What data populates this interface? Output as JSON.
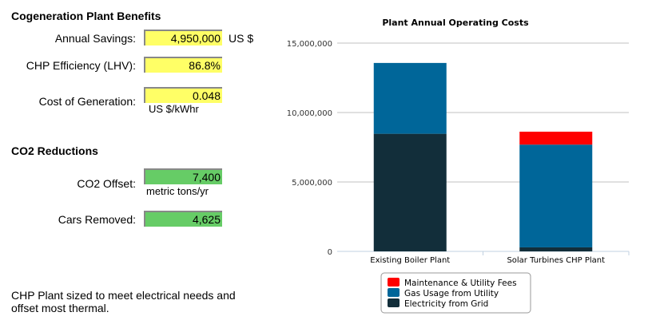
{
  "benefits": {
    "title": "Cogeneration Plant Benefits",
    "annual_savings": {
      "label": "Annual Savings:",
      "value": "4,950,000",
      "unit": "US $"
    },
    "chp_efficiency": {
      "label": "CHP Efficiency (LHV):",
      "value": "86.8%"
    },
    "cost_generation": {
      "label": "Cost of Generation:",
      "value": "0.048",
      "unit": "US $/kWhr"
    }
  },
  "co2": {
    "title": "CO2 Reductions",
    "offset": {
      "label": "CO2 Offset:",
      "value": "7,400",
      "unit": "metric tons/yr"
    },
    "cars": {
      "label": "Cars Removed:",
      "value": "4,625"
    }
  },
  "note": "CHP Plant sized to meet electrical needs and offset most thermal.",
  "chart_data": {
    "type": "bar",
    "stacked": true,
    "title": "Plant Annual Operating Costs",
    "categories": [
      "Existing Boiler Plant",
      "Solar Turbines CHP Plant"
    ],
    "series": [
      {
        "name": "Electricity from Grid",
        "color": "#122e3a",
        "values": [
          8470000,
          290000
        ]
      },
      {
        "name": "Gas Usage from Utility",
        "color": "#006699",
        "values": [
          5100000,
          7400000
        ]
      },
      {
        "name": "Maintenance & Utility Fees",
        "color": "#ff0000",
        "values": [
          0,
          930000
        ]
      }
    ],
    "legend_order": [
      "Maintenance & Utility Fees",
      "Gas Usage from Utility",
      "Electricity from Grid"
    ],
    "yticks": [
      0,
      5000000,
      10000000,
      15000000
    ],
    "ytick_labels": [
      "0",
      "5,000,000",
      "10,000,000",
      "15,000,000"
    ],
    "ylim": [
      0,
      15000000
    ],
    "legend": "bottom",
    "grid": true
  }
}
